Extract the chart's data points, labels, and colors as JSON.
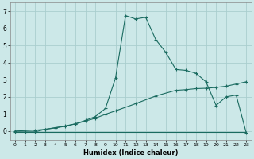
{
  "xlabel": "Humidex (Indice chaleur)",
  "background_color": "#cce8e8",
  "grid_color": "#aacece",
  "line_color": "#1a6b60",
  "xlim": [
    -0.5,
    23.5
  ],
  "ylim": [
    -0.5,
    7.5
  ],
  "yticks": [
    0,
    1,
    2,
    3,
    4,
    5,
    6,
    7
  ],
  "xticks": [
    0,
    1,
    2,
    3,
    4,
    5,
    6,
    7,
    8,
    9,
    10,
    11,
    12,
    13,
    14,
    15,
    16,
    17,
    18,
    19,
    20,
    21,
    22,
    23
  ],
  "series_flat_x": [
    0,
    1,
    2,
    3,
    4,
    5,
    6,
    7,
    8,
    9,
    10,
    11,
    12,
    13,
    14,
    15,
    16,
    17,
    18,
    19,
    20,
    21,
    22,
    23
  ],
  "series_flat_y": [
    -0.05,
    -0.05,
    -0.05,
    -0.05,
    -0.05,
    -0.05,
    -0.05,
    -0.05,
    -0.05,
    -0.05,
    -0.05,
    -0.05,
    -0.05,
    -0.05,
    -0.05,
    -0.05,
    -0.05,
    -0.05,
    -0.05,
    -0.05,
    -0.05,
    -0.05,
    -0.05,
    -0.05
  ],
  "series_diag_x": [
    0,
    2,
    3,
    4,
    5,
    6,
    7,
    8,
    9,
    10,
    12,
    14,
    16,
    17,
    18,
    19,
    20,
    21,
    22,
    23
  ],
  "series_diag_y": [
    0.0,
    0.05,
    0.1,
    0.18,
    0.28,
    0.42,
    0.58,
    0.75,
    0.98,
    1.18,
    1.6,
    2.05,
    2.38,
    2.42,
    2.48,
    2.5,
    2.55,
    2.62,
    2.75,
    2.88
  ],
  "series_main_x": [
    0,
    1,
    2,
    3,
    4,
    5,
    6,
    7,
    8,
    9,
    10,
    11,
    12,
    13,
    14,
    15,
    16,
    17,
    18,
    19,
    20,
    21,
    22,
    23
  ],
  "series_main_y": [
    -0.05,
    -0.05,
    -0.05,
    0.1,
    0.2,
    0.3,
    0.42,
    0.62,
    0.85,
    1.32,
    3.1,
    6.75,
    6.55,
    6.65,
    5.35,
    4.6,
    3.6,
    3.55,
    3.38,
    2.88,
    1.5,
    2.0,
    2.1,
    -0.1
  ]
}
